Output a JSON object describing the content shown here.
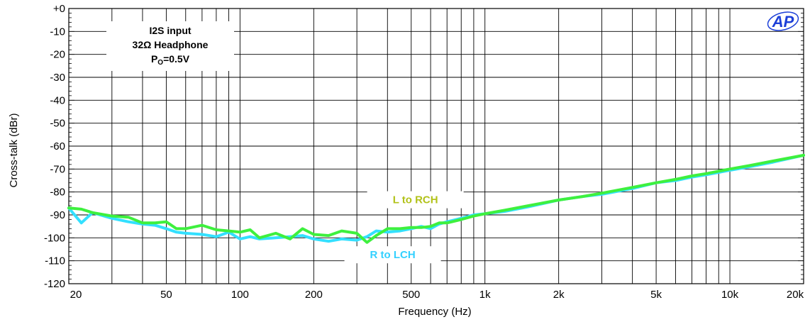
{
  "chart_data": {
    "type": "line",
    "title": "",
    "xlabel": "Frequency (Hz)",
    "ylabel": "Cross-talk (dBr)",
    "xscale": "log",
    "xlim": [
      20,
      20000
    ],
    "ylim": [
      -120,
      0
    ],
    "grid": true,
    "x_ticks": [
      {
        "value": 20,
        "label": "20"
      },
      {
        "value": 50,
        "label": "50"
      },
      {
        "value": 100,
        "label": "100"
      },
      {
        "value": 200,
        "label": "200"
      },
      {
        "value": 500,
        "label": "500"
      },
      {
        "value": 1000,
        "label": "1k"
      },
      {
        "value": 2000,
        "label": "2k"
      },
      {
        "value": 5000,
        "label": "5k"
      },
      {
        "value": 10000,
        "label": "10k"
      },
      {
        "value": 20000,
        "label": "20k"
      }
    ],
    "y_ticks": [
      {
        "value": 0,
        "label": "+0"
      },
      {
        "value": -10,
        "label": "-10"
      },
      {
        "value": -20,
        "label": "-20"
      },
      {
        "value": -30,
        "label": "-30"
      },
      {
        "value": -40,
        "label": "-40"
      },
      {
        "value": -50,
        "label": "-50"
      },
      {
        "value": -60,
        "label": "-60"
      },
      {
        "value": -70,
        "label": "-70"
      },
      {
        "value": -80,
        "label": "-80"
      },
      {
        "value": -90,
        "label": "-90"
      },
      {
        "value": -100,
        "label": "-100"
      },
      {
        "value": -110,
        "label": "-110"
      },
      {
        "value": -120,
        "label": "-120"
      }
    ],
    "annotation": {
      "line1": "I2S input",
      "line2": "32Ω Headphone",
      "line3_main": "P",
      "line3_sub": "O",
      "line3_rest": "=0.5V"
    },
    "logo": "AP",
    "series": [
      {
        "name": "R to LCH",
        "color": "#33e0ff",
        "x": [
          20,
          22.5,
          25,
          30,
          35,
          40,
          45,
          50,
          55,
          60,
          70,
          80,
          90,
          100,
          110,
          120,
          140,
          160,
          180,
          200,
          230,
          260,
          300,
          330,
          360,
          400,
          450,
          500,
          550,
          600,
          650,
          700,
          800,
          900,
          1000,
          1200,
          1500,
          2000,
          2500,
          3000,
          4000,
          5000,
          6000,
          7000,
          8000,
          10000,
          12000,
          15000,
          20000
        ],
        "y": [
          -87,
          -93.5,
          -89,
          -91.5,
          -93,
          -94,
          -94.5,
          -96,
          -97.5,
          -98,
          -98.5,
          -99.5,
          -97.5,
          -100.5,
          -99.5,
          -100.5,
          -100,
          -99.5,
          -99,
          -100.5,
          -101.5,
          -100.5,
          -101,
          -99.5,
          -97,
          -97.5,
          -97,
          -96,
          -95,
          -96,
          -94,
          -93,
          -91.5,
          -90,
          -89.5,
          -88.5,
          -86.5,
          -83.5,
          -82,
          -81,
          -78.5,
          -76,
          -75,
          -73.5,
          -72.5,
          -70.5,
          -69,
          -67,
          -64
        ]
      },
      {
        "name": "L to RCH",
        "color": "#3ef03e",
        "x": [
          20,
          22.5,
          25,
          30,
          35,
          40,
          45,
          50,
          55,
          60,
          70,
          80,
          90,
          100,
          110,
          120,
          140,
          160,
          180,
          200,
          230,
          260,
          300,
          330,
          360,
          400,
          450,
          500,
          550,
          600,
          650,
          700,
          800,
          900,
          1000,
          1200,
          1500,
          2000,
          2500,
          3000,
          4000,
          5000,
          6000,
          7000,
          8000,
          10000,
          12000,
          15000,
          20000
        ],
        "y": [
          -87,
          -87.5,
          -89,
          -90.5,
          -91,
          -93.5,
          -93.5,
          -93,
          -96,
          -96,
          -94.5,
          -96.5,
          -97,
          -97.5,
          -96.5,
          -100,
          -98,
          -100.5,
          -96,
          -98.5,
          -99,
          -97,
          -98,
          -102,
          -99,
          -96,
          -96,
          -95.5,
          -95.5,
          -95,
          -93.5,
          -93.5,
          -92,
          -90.5,
          -89.5,
          -88,
          -86,
          -83.5,
          -82,
          -80.5,
          -78,
          -76,
          -74.5,
          -73,
          -72,
          -70,
          -68.5,
          -66.5,
          -64
        ]
      }
    ],
    "series_labels": [
      {
        "series": 0,
        "text": "R to LCH",
        "at_x": 420,
        "at_y": -108
      },
      {
        "series": 1,
        "text": "L to RCH",
        "at_x": 520,
        "at_y": -84
      }
    ]
  }
}
